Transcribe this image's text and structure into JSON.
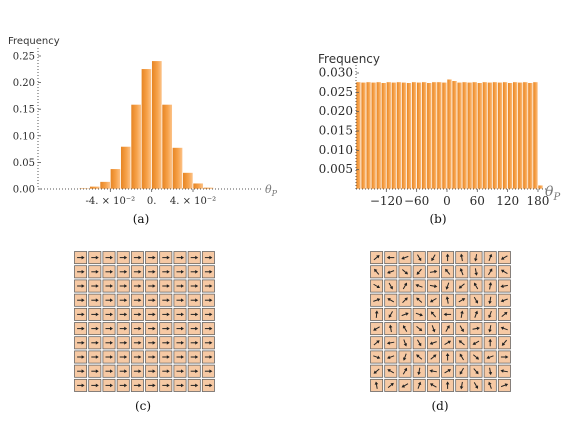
{
  "chart_data": [
    {
      "id": "a",
      "type": "bar",
      "ylabel": "Frequency",
      "xlabel": "θ_P",
      "caption": "(a)",
      "ylim": [
        0,
        0.25
      ],
      "yticks": [
        {
          "value": 0.0,
          "label": "0.00"
        },
        {
          "value": 0.05,
          "label": "0.05"
        },
        {
          "value": 0.1,
          "label": "0.10"
        },
        {
          "value": 0.15,
          "label": "0.15"
        },
        {
          "value": 0.2,
          "label": "0.20"
        },
        {
          "value": 0.25,
          "label": "0.25"
        }
      ],
      "xticks": [
        {
          "value": -0.04,
          "label": "-4. × 10⁻²"
        },
        {
          "value": 0,
          "label": "0."
        },
        {
          "value": 0.04,
          "label": "4. × 10⁻²"
        }
      ],
      "xlim": [
        -0.11,
        0.1
      ],
      "bin_width": 0.01,
      "bins": [
        {
          "x0": -0.09,
          "value": 0.001
        },
        {
          "x0": -0.08,
          "value": 0.001
        },
        {
          "x0": -0.07,
          "value": 0.002
        },
        {
          "x0": -0.06,
          "value": 0.005
        },
        {
          "x0": -0.05,
          "value": 0.014
        },
        {
          "x0": -0.04,
          "value": 0.038
        },
        {
          "x0": -0.03,
          "value": 0.08
        },
        {
          "x0": -0.02,
          "value": 0.159
        },
        {
          "x0": -0.01,
          "value": 0.226
        },
        {
          "x0": 0.0,
          "value": 0.241
        },
        {
          "x0": 0.01,
          "value": 0.159
        },
        {
          "x0": 0.02,
          "value": 0.078
        },
        {
          "x0": 0.03,
          "value": 0.031
        },
        {
          "x0": 0.04,
          "value": 0.011
        },
        {
          "x0": 0.05,
          "value": 0.003
        },
        {
          "x0": 0.06,
          "value": 0.001
        }
      ]
    },
    {
      "id": "b",
      "type": "bar",
      "ylabel": "Frequency",
      "xlabel": "θ_P",
      "caption": "(b)",
      "ylim": [
        0,
        0.03
      ],
      "yticks": [
        {
          "value": 0.005,
          "label": "0.005"
        },
        {
          "value": 0.01,
          "label": "0.010"
        },
        {
          "value": 0.015,
          "label": "0.015"
        },
        {
          "value": 0.02,
          "label": "0.020"
        },
        {
          "value": 0.025,
          "label": "0.025"
        },
        {
          "value": 0.03,
          "label": "0.030"
        }
      ],
      "xticks": [
        {
          "value": -120,
          "label": "−120"
        },
        {
          "value": -60,
          "label": "−60"
        },
        {
          "value": 0,
          "label": "0"
        },
        {
          "value": 60,
          "label": "60"
        },
        {
          "value": 120,
          "label": "120"
        },
        {
          "value": 180,
          "label": "180"
        }
      ],
      "xlim": [
        -180,
        184
      ],
      "bin_width": 10,
      "bins": [
        {
          "x0": -180,
          "value": 0.0277
        },
        {
          "x0": -170,
          "value": 0.0276
        },
        {
          "x0": -160,
          "value": 0.0277
        },
        {
          "x0": -150,
          "value": 0.0276
        },
        {
          "x0": -140,
          "value": 0.0277
        },
        {
          "x0": -130,
          "value": 0.0275
        },
        {
          "x0": -120,
          "value": 0.0277
        },
        {
          "x0": -110,
          "value": 0.0276
        },
        {
          "x0": -100,
          "value": 0.0277
        },
        {
          "x0": -90,
          "value": 0.0276
        },
        {
          "x0": -80,
          "value": 0.0275
        },
        {
          "x0": -70,
          "value": 0.0277
        },
        {
          "x0": -60,
          "value": 0.0276
        },
        {
          "x0": -50,
          "value": 0.0277
        },
        {
          "x0": -40,
          "value": 0.0275
        },
        {
          "x0": -30,
          "value": 0.0277
        },
        {
          "x0": -20,
          "value": 0.0277
        },
        {
          "x0": -10,
          "value": 0.0276
        },
        {
          "x0": 0,
          "value": 0.0284
        },
        {
          "x0": 10,
          "value": 0.028
        },
        {
          "x0": 20,
          "value": 0.0276
        },
        {
          "x0": 30,
          "value": 0.0277
        },
        {
          "x0": 40,
          "value": 0.0276
        },
        {
          "x0": 50,
          "value": 0.0277
        },
        {
          "x0": 60,
          "value": 0.0275
        },
        {
          "x0": 70,
          "value": 0.0277
        },
        {
          "x0": 80,
          "value": 0.0276
        },
        {
          "x0": 90,
          "value": 0.0277
        },
        {
          "x0": 100,
          "value": 0.0276
        },
        {
          "x0": 110,
          "value": 0.0277
        },
        {
          "x0": 120,
          "value": 0.0275
        },
        {
          "x0": 130,
          "value": 0.0277
        },
        {
          "x0": 140,
          "value": 0.0276
        },
        {
          "x0": 150,
          "value": 0.0277
        },
        {
          "x0": 160,
          "value": 0.0275
        },
        {
          "x0": 170,
          "value": 0.0277
        },
        {
          "x0": 180,
          "value": 0.001
        }
      ]
    },
    {
      "id": "c",
      "type": "grid",
      "caption": "(c)",
      "rows": 10,
      "cols": 10,
      "angles_deg": [
        [
          0,
          0,
          0,
          0,
          0,
          0,
          0,
          0,
          0,
          0
        ],
        [
          0,
          0,
          0,
          0,
          0,
          0,
          0,
          0,
          0,
          0
        ],
        [
          0,
          0,
          0,
          0,
          0,
          0,
          0,
          0,
          0,
          0
        ],
        [
          0,
          0,
          0,
          0,
          0,
          0,
          0,
          0,
          0,
          0
        ],
        [
          0,
          0,
          0,
          0,
          0,
          0,
          0,
          0,
          0,
          0
        ],
        [
          0,
          0,
          0,
          0,
          0,
          0,
          0,
          0,
          0,
          0
        ],
        [
          0,
          0,
          0,
          0,
          0,
          0,
          0,
          0,
          0,
          0
        ],
        [
          0,
          0,
          0,
          0,
          0,
          0,
          0,
          0,
          0,
          0
        ],
        [
          0,
          0,
          0,
          0,
          0,
          0,
          0,
          0,
          0,
          0
        ],
        [
          0,
          0,
          0,
          0,
          0,
          0,
          0,
          0,
          0,
          0
        ]
      ]
    },
    {
      "id": "d",
      "type": "grid",
      "caption": "(d)",
      "rows": 10,
      "cols": 10,
      "angles_deg": [
        [
          40,
          180,
          200,
          -60,
          -120,
          90,
          100,
          260,
          70,
          -150
        ],
        [
          130,
          200,
          -40,
          230,
          10,
          130,
          110,
          -80,
          60,
          150
        ],
        [
          -30,
          300,
          60,
          160,
          -10,
          250,
          220,
          120,
          80,
          190
        ],
        [
          20,
          150,
          45,
          140,
          210,
          100,
          30,
          300,
          -100,
          -160
        ],
        [
          85,
          240,
          20,
          -20,
          130,
          180,
          80,
          70,
          250,
          40
        ],
        [
          -150,
          100,
          120,
          -40,
          290,
          60,
          300,
          10,
          260,
          160
        ],
        [
          40,
          190,
          -70,
          300,
          200,
          30,
          140,
          210,
          90,
          -130
        ],
        [
          -20,
          200,
          250,
          140,
          40,
          90,
          120,
          -40,
          200,
          0
        ],
        [
          220,
          150,
          60,
          260,
          170,
          30,
          -120,
          310,
          280,
          170
        ],
        [
          100,
          40,
          210,
          70,
          150,
          90,
          260,
          -60,
          110,
          20
        ]
      ]
    }
  ]
}
